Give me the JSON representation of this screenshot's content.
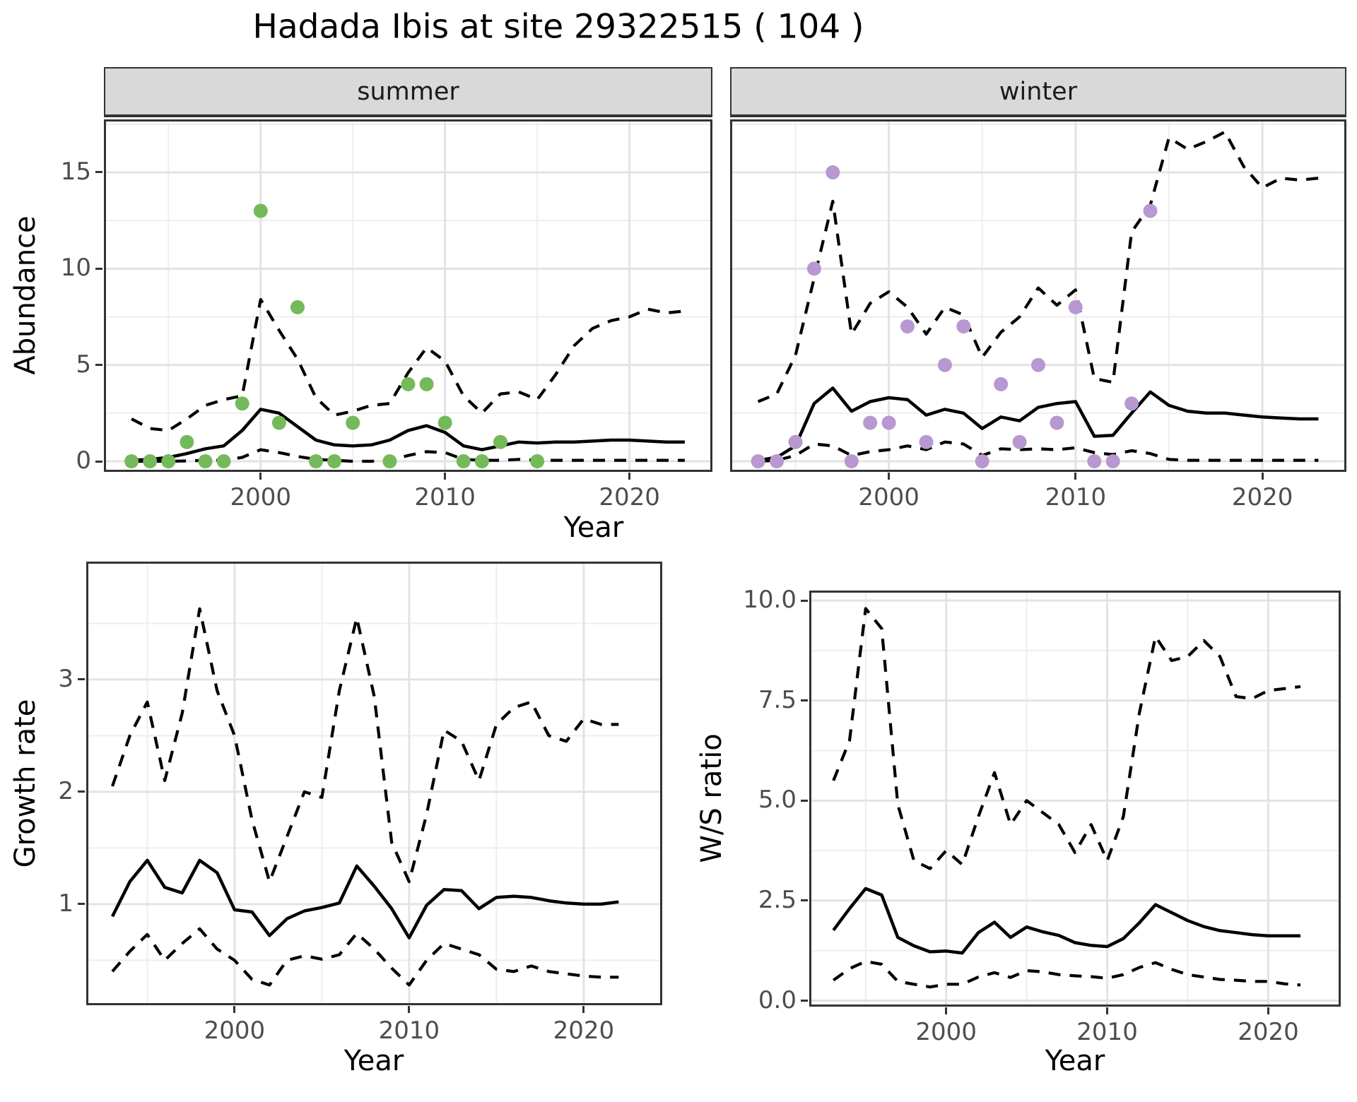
{
  "title": "Hadada Ibis at site 29322515 ( 104 )",
  "top_row": {
    "facets": [
      {
        "label": "summer"
      },
      {
        "label": "winter"
      }
    ],
    "ylabel": "Abundance",
    "xlabel": "Year"
  },
  "bottom_left": {
    "ylabel": "Growth rate",
    "xlabel": "Year"
  },
  "bottom_right": {
    "ylabel": "W/S ratio",
    "xlabel": "Year"
  },
  "colors": {
    "summer_points": "#74ba5b",
    "winter_points": "#b798d1",
    "line": "#000000",
    "grid_major": "#e3e3e3",
    "grid_minor": "#eeeeee",
    "strip_bg": "#d9d9d9",
    "panel_border": "#333333",
    "axis_text": "#4d4d4d"
  },
  "chart_data": [
    {
      "id": "summer",
      "type": "line",
      "facet": "summer",
      "xlabel": "Year",
      "ylabel": "Abundance",
      "xlim": [
        1991.5,
        2024.5
      ],
      "ylim": [
        -0.55,
        17.75
      ],
      "x_ticks": [
        2000,
        2010,
        2020
      ],
      "x_tick_labels": [
        "2000",
        "2010",
        "2020"
      ],
      "x_minor": [
        1995,
        2005,
        2015
      ],
      "y_ticks": [
        0,
        5,
        10,
        15
      ],
      "y_tick_labels": [
        "0",
        "5",
        "10",
        "15"
      ],
      "y_minor": [
        2.5,
        7.5,
        12.5,
        17.5
      ],
      "show_y_axis": true,
      "x": [
        1993,
        1994,
        1995,
        1996,
        1997,
        1998,
        1999,
        2000,
        2001,
        2002,
        2003,
        2004,
        2005,
        2006,
        2007,
        2008,
        2009,
        2010,
        2011,
        2012,
        2013,
        2014,
        2015,
        2016,
        2017,
        2018,
        2019,
        2020,
        2021,
        2022,
        2023
      ],
      "series": [
        {
          "name": "median",
          "style": "solid",
          "values": [
            0.05,
            0.1,
            0.2,
            0.4,
            0.65,
            0.8,
            1.6,
            2.7,
            2.5,
            1.8,
            1.1,
            0.85,
            0.8,
            0.85,
            1.1,
            1.6,
            1.85,
            1.5,
            0.8,
            0.6,
            0.8,
            1.0,
            0.95,
            1.0,
            1.0,
            1.05,
            1.1,
            1.1,
            1.05,
            1.0,
            1.0
          ]
        },
        {
          "name": "upper_95ci",
          "style": "dashed",
          "values": [
            2.2,
            1.7,
            1.6,
            2.2,
            2.9,
            3.2,
            3.4,
            8.4,
            6.8,
            5.3,
            3.3,
            2.4,
            2.6,
            2.9,
            3.0,
            4.6,
            5.9,
            5.2,
            3.4,
            2.5,
            3.5,
            3.6,
            3.2,
            4.5,
            6.0,
            6.9,
            7.3,
            7.5,
            7.9,
            7.7,
            7.8
          ]
        },
        {
          "name": "lower_95ci",
          "style": "dashed",
          "values": [
            0,
            0,
            0,
            0.02,
            0.05,
            0.05,
            0.2,
            0.6,
            0.45,
            0.25,
            0.1,
            0.05,
            0,
            0,
            0.05,
            0.3,
            0.5,
            0.45,
            0.1,
            0.05,
            0.05,
            0.1,
            0.05,
            0.05,
            0.05,
            0.05,
            0.05,
            0.05,
            0.05,
            0.05,
            0.05
          ]
        }
      ],
      "points": {
        "name": "observed-counts-summer",
        "color": "#74ba5b",
        "data": [
          [
            1993,
            0
          ],
          [
            1994,
            0
          ],
          [
            1995,
            0
          ],
          [
            1996,
            1
          ],
          [
            1997,
            0
          ],
          [
            1998,
            0
          ],
          [
            1999,
            3
          ],
          [
            2000,
            13
          ],
          [
            2001,
            2
          ],
          [
            2002,
            8
          ],
          [
            2003,
            0
          ],
          [
            2004,
            0
          ],
          [
            2005,
            2
          ],
          [
            2007,
            0
          ],
          [
            2008,
            4
          ],
          [
            2009,
            4
          ],
          [
            2010,
            2
          ],
          [
            2011,
            0
          ],
          [
            2012,
            0
          ],
          [
            2013,
            1
          ],
          [
            2015,
            0
          ]
        ]
      }
    },
    {
      "id": "winter",
      "type": "line",
      "facet": "winter",
      "xlabel": "Year",
      "ylabel": "Abundance",
      "xlim": [
        1991.5,
        2024.5
      ],
      "ylim": [
        -0.55,
        17.75
      ],
      "x_ticks": [
        2000,
        2010,
        2020
      ],
      "x_tick_labels": [
        "2000",
        "2010",
        "2020"
      ],
      "x_minor": [
        1995,
        2005,
        2015
      ],
      "y_ticks": [
        0,
        5,
        10,
        15
      ],
      "y_tick_labels": [
        "0",
        "5",
        "10",
        "15"
      ],
      "y_minor": [
        2.5,
        7.5,
        12.5,
        17.5
      ],
      "show_y_axis": false,
      "x": [
        1993,
        1994,
        1995,
        1996,
        1997,
        1998,
        1999,
        2000,
        2001,
        2002,
        2003,
        2004,
        2005,
        2006,
        2007,
        2008,
        2009,
        2010,
        2011,
        2012,
        2013,
        2014,
        2015,
        2016,
        2017,
        2018,
        2019,
        2020,
        2021,
        2022,
        2023
      ],
      "series": [
        {
          "name": "median",
          "style": "solid",
          "values": [
            0.05,
            0.2,
            0.8,
            3.0,
            3.8,
            2.6,
            3.1,
            3.3,
            3.2,
            2.4,
            2.7,
            2.5,
            1.7,
            2.3,
            2.1,
            2.8,
            3.0,
            3.1,
            1.3,
            1.35,
            2.5,
            3.6,
            2.9,
            2.6,
            2.5,
            2.5,
            2.4,
            2.3,
            2.25,
            2.2,
            2.2
          ]
        },
        {
          "name": "upper_95ci",
          "style": "dashed",
          "values": [
            3.1,
            3.5,
            5.5,
            9.5,
            13.5,
            6.6,
            8.2,
            8.8,
            8.0,
            6.6,
            8.0,
            7.6,
            5.4,
            6.7,
            7.5,
            9.0,
            8.1,
            8.9,
            4.3,
            4.1,
            11.9,
            13.3,
            16.8,
            16.2,
            16.6,
            17.1,
            15.3,
            14.2,
            14.7,
            14.6,
            14.7
          ]
        },
        {
          "name": "lower_95ci",
          "style": "dashed",
          "values": [
            0,
            0.05,
            0.3,
            0.9,
            0.8,
            0.3,
            0.5,
            0.6,
            0.8,
            0.6,
            1.0,
            0.9,
            0.3,
            0.65,
            0.6,
            0.65,
            0.6,
            0.7,
            0.45,
            0.35,
            0.55,
            0.4,
            0.1,
            0.05,
            0.05,
            0.05,
            0.05,
            0.05,
            0.05,
            0.05,
            0.05
          ]
        }
      ],
      "points": {
        "name": "observed-counts-winter",
        "color": "#b798d1",
        "data": [
          [
            1993,
            0
          ],
          [
            1994,
            0
          ],
          [
            1995,
            1
          ],
          [
            1996,
            10
          ],
          [
            1997,
            15
          ],
          [
            1998,
            0
          ],
          [
            1999,
            2
          ],
          [
            2000,
            2
          ],
          [
            2001,
            7
          ],
          [
            2002,
            1
          ],
          [
            2003,
            5
          ],
          [
            2004,
            7
          ],
          [
            2005,
            0
          ],
          [
            2006,
            4
          ],
          [
            2007,
            1
          ],
          [
            2008,
            5
          ],
          [
            2009,
            2
          ],
          [
            2010,
            8
          ],
          [
            2011,
            0
          ],
          [
            2012,
            0
          ],
          [
            2013,
            3
          ],
          [
            2014,
            13
          ]
        ]
      }
    },
    {
      "id": "growth",
      "type": "line",
      "facet": "",
      "xlabel": "Year",
      "ylabel": "Growth rate",
      "xlim": [
        1991.5,
        2024.5
      ],
      "ylim": [
        0.1,
        4.05
      ],
      "x_ticks": [
        2000,
        2010,
        2020
      ],
      "x_tick_labels": [
        "2000",
        "2010",
        "2020"
      ],
      "x_minor": [
        1995,
        2005,
        2015
      ],
      "y_ticks": [
        1,
        2,
        3
      ],
      "y_tick_labels": [
        "1",
        "2",
        "3"
      ],
      "y_minor": [
        0.5,
        1.5,
        2.5,
        3.5
      ],
      "show_y_axis": true,
      "x": [
        1993,
        1994,
        1995,
        1996,
        1997,
        1998,
        1999,
        2000,
        2001,
        2002,
        2003,
        2004,
        2005,
        2006,
        2007,
        2008,
        2009,
        2010,
        2011,
        2012,
        2013,
        2014,
        2015,
        2016,
        2017,
        2018,
        2019,
        2020,
        2021,
        2022
      ],
      "series": [
        {
          "name": "median",
          "style": "solid",
          "values": [
            0.89,
            1.2,
            1.39,
            1.15,
            1.1,
            1.39,
            1.28,
            0.95,
            0.93,
            0.72,
            0.87,
            0.94,
            0.97,
            1.01,
            1.34,
            1.16,
            0.96,
            0.7,
            0.99,
            1.13,
            1.12,
            0.96,
            1.06,
            1.07,
            1.06,
            1.03,
            1.01,
            1.0,
            1.0,
            1.02
          ]
        },
        {
          "name": "upper_95ci",
          "style": "dashed",
          "values": [
            2.05,
            2.5,
            2.8,
            2.1,
            2.7,
            3.63,
            2.9,
            2.5,
            1.75,
            1.2,
            1.6,
            2.0,
            1.95,
            2.9,
            3.55,
            2.85,
            1.55,
            1.2,
            1.8,
            2.55,
            2.45,
            2.1,
            2.6,
            2.75,
            2.8,
            2.5,
            2.45,
            2.65,
            2.6,
            2.6
          ]
        },
        {
          "name": "lower_95ci",
          "style": "dashed",
          "values": [
            0.4,
            0.58,
            0.73,
            0.5,
            0.65,
            0.78,
            0.6,
            0.5,
            0.33,
            0.28,
            0.5,
            0.54,
            0.51,
            0.55,
            0.74,
            0.6,
            0.43,
            0.28,
            0.5,
            0.65,
            0.6,
            0.55,
            0.42,
            0.4,
            0.45,
            0.4,
            0.38,
            0.36,
            0.35,
            0.35
          ]
        }
      ],
      "points": null
    },
    {
      "id": "ws",
      "type": "line",
      "facet": "",
      "xlabel": "Year",
      "ylabel": "W/S ratio",
      "xlim": [
        1991.5,
        2024.5
      ],
      "ylim": [
        -0.15,
        10.25
      ],
      "x_ticks": [
        2000,
        2010,
        2020
      ],
      "x_tick_labels": [
        "2000",
        "2010",
        "2020"
      ],
      "x_minor": [
        1995,
        2005,
        2015
      ],
      "y_ticks": [
        0,
        2.5,
        5,
        7.5,
        10
      ],
      "y_tick_labels": [
        "0.0",
        "2.5",
        "5.0",
        "7.5",
        "10.0"
      ],
      "y_minor": [
        1.25,
        3.75,
        6.25,
        8.75
      ],
      "show_y_axis": true,
      "x": [
        1993,
        1994,
        1995,
        1996,
        1997,
        1998,
        1999,
        2000,
        2001,
        2002,
        2003,
        2004,
        2005,
        2006,
        2007,
        2008,
        2009,
        2010,
        2011,
        2012,
        2013,
        2014,
        2015,
        2016,
        2017,
        2018,
        2019,
        2020,
        2021,
        2022
      ],
      "series": [
        {
          "name": "median",
          "style": "solid",
          "values": [
            1.76,
            2.3,
            2.8,
            2.64,
            1.58,
            1.37,
            1.22,
            1.24,
            1.19,
            1.7,
            1.96,
            1.58,
            1.84,
            1.72,
            1.63,
            1.45,
            1.38,
            1.35,
            1.55,
            1.95,
            2.4,
            2.2,
            2.0,
            1.85,
            1.75,
            1.7,
            1.65,
            1.62,
            1.62,
            1.62
          ]
        },
        {
          "name": "upper_95ci",
          "style": "dashed",
          "values": [
            5.5,
            6.5,
            9.8,
            9.3,
            4.9,
            3.5,
            3.3,
            3.75,
            3.4,
            4.6,
            5.7,
            4.4,
            5.0,
            4.7,
            4.4,
            3.7,
            4.4,
            3.5,
            4.6,
            7.2,
            9.1,
            8.5,
            8.6,
            9.0,
            8.6,
            7.6,
            7.55,
            7.75,
            7.8,
            7.85
          ]
        },
        {
          "name": "lower_95ci",
          "style": "dashed",
          "values": [
            0.51,
            0.8,
            0.98,
            0.91,
            0.48,
            0.41,
            0.34,
            0.41,
            0.41,
            0.59,
            0.7,
            0.58,
            0.75,
            0.72,
            0.65,
            0.62,
            0.6,
            0.56,
            0.65,
            0.83,
            0.95,
            0.78,
            0.65,
            0.59,
            0.53,
            0.51,
            0.48,
            0.48,
            0.42,
            0.39
          ]
        }
      ],
      "points": null
    }
  ]
}
